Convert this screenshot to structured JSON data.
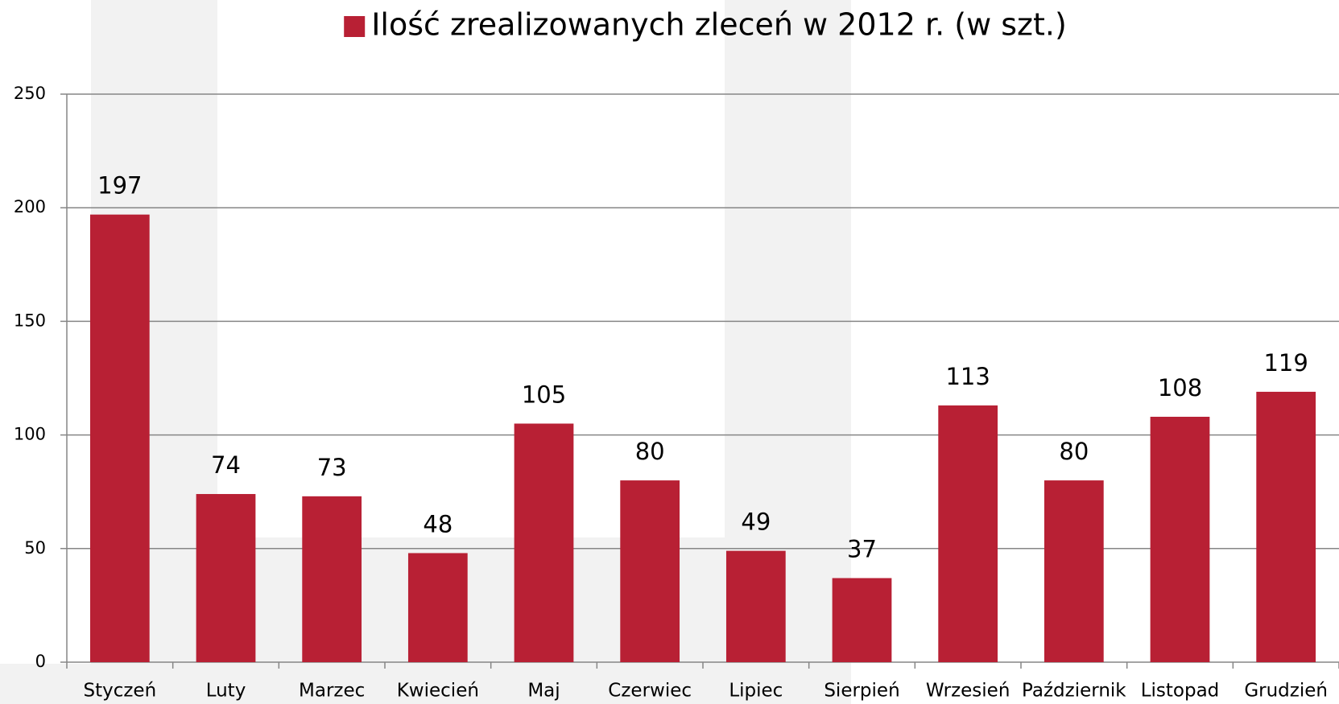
{
  "chart_data": {
    "type": "bar",
    "categories": [
      "Styczeń",
      "Luty",
      "Marzec",
      "Kwiecień",
      "Maj",
      "Czerwiec",
      "Lipiec",
      "Sierpień",
      "Wrzesień",
      "Październik",
      "Listopad",
      "Grudzień"
    ],
    "series": [
      {
        "name": "Ilość zrealizowanych zleceń w 2012 r. (w szt.)",
        "color": "#b82034",
        "values": [
          197,
          74,
          73,
          48,
          105,
          80,
          49,
          37,
          113,
          80,
          108,
          119
        ]
      }
    ],
    "ylim": [
      0,
      250
    ],
    "yticks": [
      0,
      50,
      100,
      150,
      200,
      250
    ],
    "grid": true,
    "legend": "top"
  }
}
